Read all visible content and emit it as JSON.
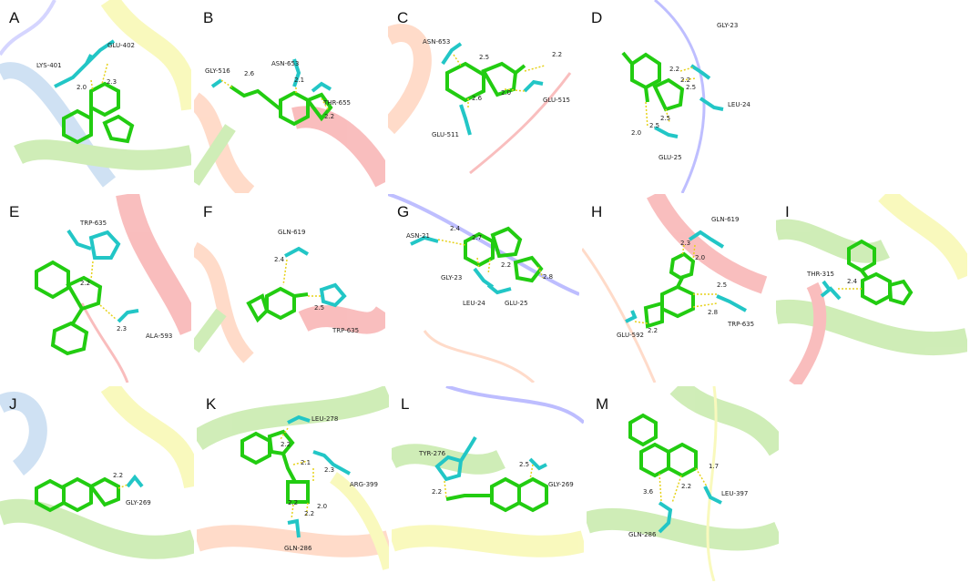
{
  "panels": [
    {
      "id": "A",
      "label": "A",
      "residues": [
        "LYS-401",
        "GLU-402"
      ],
      "distances": [
        "2.0",
        "2.3"
      ]
    },
    {
      "id": "B",
      "label": "B",
      "residues": [
        "GLY-516",
        "ASN-653",
        "THR-655"
      ],
      "distances": [
        "2.6",
        "2.1",
        "2.2"
      ]
    },
    {
      "id": "C",
      "label": "C",
      "residues": [
        "ASN-653",
        "GLU-515",
        "GLU-511"
      ],
      "distances": [
        "2.5",
        "2.2",
        "2.0",
        "2.6"
      ]
    },
    {
      "id": "D",
      "label": "D",
      "residues": [
        "GLY-23",
        "LEU-24",
        "GLU-25"
      ],
      "distances": [
        "2.2",
        "2.2",
        "2.5",
        "2.0",
        "2.5",
        "2.5"
      ]
    },
    {
      "id": "E",
      "label": "E",
      "residues": [
        "TRP-635",
        "ALA-593"
      ],
      "distances": [
        "2.2",
        "2.3"
      ]
    },
    {
      "id": "F",
      "label": "F",
      "residues": [
        "GLN-619",
        "TRP-635"
      ],
      "distances": [
        "2.4",
        "2.5"
      ]
    },
    {
      "id": "G",
      "label": "G",
      "residues": [
        "ASN-21",
        "GLY-23",
        "LEU-24",
        "GLU-25"
      ],
      "distances": [
        "2.4",
        "2.7",
        "2.2",
        "2.8"
      ]
    },
    {
      "id": "H",
      "label": "H",
      "residues": [
        "GLN-619",
        "GLU-592",
        "TRP-635"
      ],
      "distances": [
        "2.3",
        "2.0",
        "2.5",
        "2.8",
        "2.2"
      ]
    },
    {
      "id": "I",
      "label": "I",
      "residues": [
        "THR-315"
      ],
      "distances": [
        "2.4"
      ]
    },
    {
      "id": "J",
      "label": "J",
      "residues": [
        "GLY-269"
      ],
      "distances": [
        "2.2"
      ]
    },
    {
      "id": "K",
      "label": "K",
      "residues": [
        "LEU-278",
        "ARG-399",
        "GLN-286"
      ],
      "distances": [
        "2.2",
        "2.1",
        "2.3",
        "2.2",
        "2.0",
        "2.2"
      ]
    },
    {
      "id": "L",
      "label": "L",
      "residues": [
        "TYR-276",
        "GLY-269"
      ],
      "distances": [
        "2.5",
        "2.2"
      ]
    },
    {
      "id": "M",
      "label": "M",
      "residues": [
        "LEU-397",
        "GLN-286"
      ],
      "distances": [
        "1.7",
        "2.2",
        "3.6"
      ]
    }
  ],
  "colors": {
    "ligand": "#22cc11",
    "residue": "#22c6c6",
    "oxygen": "#ee2222",
    "nitrogen": "#2233cc",
    "hbond": "#e6d21a"
  }
}
